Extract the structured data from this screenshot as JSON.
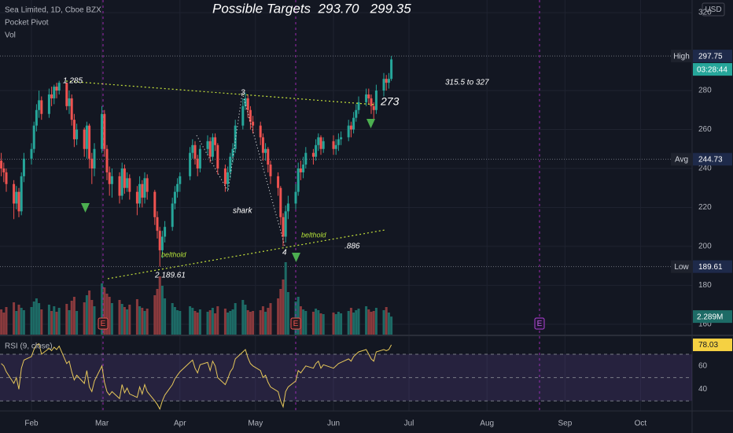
{
  "chart_data": {
    "type": "candlestick",
    "title": "Sea Limited, 1D, Cboe BZX",
    "indicator_labels": [
      "Pocket Pivot",
      "Vol"
    ],
    "currency": "USD",
    "x": [
      20,
      21,
      22,
      25,
      26,
      27,
      28,
      29,
      32,
      33,
      34,
      35,
      36,
      39,
      40,
      41,
      42,
      43,
      46,
      47,
      48,
      49,
      50,
      53,
      54,
      55,
      56,
      57,
      60,
      61,
      62,
      63,
      64,
      67,
      68,
      69,
      70,
      71,
      74,
      75,
      76,
      77,
      78,
      81,
      82,
      83,
      84,
      85,
      88,
      89,
      90,
      91,
      95,
      96,
      97,
      98,
      99,
      102,
      103,
      104,
      105,
      106,
      109,
      110,
      111,
      112,
      113,
      116,
      117,
      118,
      119,
      120,
      123,
      124,
      125,
      126,
      127,
      130,
      131,
      132,
      133,
      134,
      137,
      138,
      139,
      140,
      141,
      144,
      145,
      146,
      147,
      148,
      152,
      153,
      154,
      155,
      158,
      159,
      160,
      161,
      162,
      165,
      166,
      167,
      168,
      169,
      172,
      173,
      174,
      175
    ],
    "open": [
      244,
      240,
      238,
      232,
      222,
      228,
      218,
      236,
      245,
      250,
      262,
      270,
      275,
      268,
      278,
      276,
      282,
      280,
      284,
      272,
      276,
      265,
      255,
      260,
      250,
      262,
      245,
      240,
      250,
      268,
      250,
      238,
      232,
      236,
      226,
      240,
      230,
      235,
      228,
      222,
      232,
      225,
      235,
      228,
      215,
      208,
      198,
      205,
      210,
      222,
      228,
      232,
      236,
      248,
      252,
      245,
      240,
      250,
      254,
      246,
      256,
      252,
      240,
      232,
      238,
      246,
      250,
      262,
      272,
      276,
      270,
      264,
      262,
      256,
      248,
      250,
      242,
      236,
      230,
      215,
      205,
      218,
      222,
      228,
      240,
      238,
      242,
      248,
      246,
      252,
      256,
      250,
      254,
      250,
      252,
      255,
      256,
      262,
      260,
      266,
      270,
      274,
      278,
      276,
      272,
      270,
      280,
      286,
      284,
      286
    ],
    "high": [
      248,
      243,
      240,
      234,
      231,
      230,
      238,
      248,
      253,
      264,
      273,
      280,
      277,
      281,
      282,
      283,
      284,
      285,
      284,
      280,
      278,
      268,
      263,
      261,
      264,
      263,
      248,
      253,
      272,
      270,
      252,
      241,
      240,
      238,
      243,
      242,
      238,
      237,
      231,
      236,
      234,
      238,
      237,
      229,
      218,
      210,
      208,
      213,
      225,
      231,
      235,
      238,
      251,
      255,
      254,
      247,
      252,
      257,
      256,
      258,
      258,
      253,
      242,
      241,
      248,
      253,
      265,
      276,
      279,
      278,
      272,
      267,
      264,
      258,
      253,
      251,
      244,
      238,
      231,
      217,
      221,
      226,
      232,
      243,
      244,
      246,
      251,
      250,
      255,
      258,
      257,
      256,
      257,
      255,
      258,
      259,
      265,
      264,
      269,
      273,
      277,
      281,
      281,
      278,
      274,
      283,
      289,
      288,
      289,
      297.75
    ],
    "low": [
      236,
      233,
      228,
      214,
      219,
      215,
      216,
      233,
      242,
      248,
      259,
      266,
      265,
      266,
      272,
      273,
      276,
      278,
      270,
      268,
      262,
      251,
      252,
      246,
      245,
      240,
      232,
      236,
      248,
      246,
      234,
      226,
      225,
      222,
      224,
      227,
      228,
      224,
      216,
      220,
      220,
      222,
      224,
      211,
      204,
      189.61,
      194,
      202,
      208,
      219,
      225,
      228,
      234,
      245,
      242,
      236,
      238,
      247,
      243,
      244,
      249,
      237,
      228,
      229,
      235,
      243,
      248,
      260,
      270,
      266,
      260,
      258,
      252,
      244,
      244,
      238,
      232,
      226,
      211,
      200,
      202,
      214,
      219,
      226,
      234,
      235,
      240,
      242,
      244,
      249,
      247,
      248,
      247,
      247,
      249,
      252,
      254,
      256,
      258,
      264,
      268,
      272,
      273,
      268,
      265,
      268,
      277,
      280,
      281,
      285
    ],
    "close": [
      240,
      238,
      232,
      222,
      228,
      218,
      236,
      245,
      250,
      262,
      270,
      275,
      268,
      278,
      276,
      282,
      280,
      284,
      272,
      276,
      265,
      255,
      260,
      250,
      262,
      245,
      240,
      250,
      268,
      250,
      238,
      232,
      236,
      226,
      240,
      230,
      235,
      228,
      222,
      232,
      225,
      235,
      228,
      215,
      208,
      198,
      205,
      210,
      222,
      228,
      232,
      236,
      248,
      252,
      245,
      240,
      250,
      254,
      246,
      256,
      252,
      240,
      232,
      238,
      246,
      250,
      262,
      272,
      276,
      270,
      264,
      262,
      256,
      248,
      250,
      242,
      236,
      230,
      215,
      205,
      218,
      222,
      228,
      240,
      238,
      242,
      248,
      246,
      252,
      256,
      250,
      254,
      250,
      252,
      255,
      256,
      262,
      260,
      266,
      270,
      274,
      278,
      276,
      272,
      270,
      280,
      286,
      284,
      286,
      296
    ],
    "xlim": [
      19.5,
      294.5
    ],
    "xticks": [
      {
        "value": 32,
        "label": "Feb"
      },
      {
        "value": 60,
        "label": "Mar"
      },
      {
        "value": 91,
        "label": "Apr"
      },
      {
        "value": 121,
        "label": "May"
      },
      {
        "value": 152,
        "label": "Jun"
      },
      {
        "value": 182,
        "label": "Jul"
      },
      {
        "value": 213,
        "label": "Aug"
      },
      {
        "value": 244,
        "label": "Sep"
      },
      {
        "value": 274,
        "label": "Oct"
      }
    ],
    "ylim": [
      154.7,
      326.5
    ],
    "yticks": [
      160,
      180,
      200,
      220,
      240,
      260,
      280,
      320
    ],
    "colors": {
      "up": "#26a69a",
      "down": "#ef5350",
      "volume_up": "#1d6b66",
      "volume_down": "#8a3a3d",
      "rsi": "#e6c75a"
    },
    "levels": [
      {
        "name": "High",
        "value": 297.75
      },
      {
        "name": "Avg",
        "value": 244.73
      },
      {
        "name": "Low",
        "value": 189.61
      }
    ],
    "countdown": "03:28:44",
    "volume": {
      "values": [
        3.2,
        2.8,
        3.5,
        4.1,
        3.0,
        3.8,
        3.4,
        3.1,
        3.5,
        4.2,
        4.6,
        4.0,
        3.2,
        3.8,
        3.0,
        3.6,
        2.9,
        3.4,
        3.9,
        3.1,
        4.3,
        4.8,
        3.0,
        4.1,
        5.0,
        5.6,
        4.4,
        3.6,
        6.5,
        6.0,
        5.2,
        4.8,
        4.0,
        4.4,
        3.9,
        3.5,
        3.2,
        3.8,
        4.5,
        3.6,
        3.4,
        3.0,
        3.3,
        5.0,
        5.8,
        7.4,
        6.2,
        4.6,
        4.0,
        3.5,
        3.1,
        3.0,
        3.6,
        3.4,
        3.0,
        2.8,
        3.2,
        2.9,
        3.1,
        3.4,
        2.7,
        3.6,
        3.3,
        2.8,
        3.0,
        3.2,
        4.0,
        4.4,
        3.8,
        3.1,
        2.9,
        3.0,
        3.1,
        3.6,
        2.9,
        3.4,
        4.0,
        4.6,
        5.8,
        7.0,
        9.2,
        5.4,
        4.2,
        4.8,
        3.6,
        3.2,
        3.0,
        2.9,
        3.3,
        3.1,
        2.7,
        2.6,
        2.8,
        2.6,
        2.9,
        2.7,
        3.0,
        3.4,
        2.8,
        3.1,
        3.3,
        3.6,
        3.2,
        2.9,
        3.0,
        3.4,
        3.1,
        3.5,
        2.8,
        2.289
      ],
      "last_label": "2.289M",
      "ylim": [
        0,
        11
      ]
    },
    "rsi": {
      "name": "RSI (9, close)",
      "values": [
        62,
        60,
        55,
        45,
        50,
        40,
        58,
        65,
        68,
        74,
        78,
        79,
        70,
        75,
        73,
        76,
        74,
        77,
        62,
        64,
        55,
        48,
        52,
        45,
        56,
        42,
        38,
        47,
        60,
        46,
        38,
        35,
        38,
        32,
        44,
        37,
        41,
        36,
        33,
        42,
        36,
        44,
        38,
        30,
        27,
        23,
        30,
        35,
        44,
        49,
        52,
        55,
        63,
        65,
        58,
        54,
        61,
        63,
        56,
        64,
        60,
        50,
        44,
        49,
        55,
        58,
        66,
        72,
        74,
        67,
        62,
        60,
        56,
        50,
        52,
        46,
        42,
        38,
        30,
        25,
        38,
        42,
        47,
        56,
        54,
        57,
        60,
        58,
        62,
        64,
        58,
        61,
        58,
        60,
        62,
        63,
        66,
        64,
        68,
        70,
        72,
        74,
        70,
        66,
        64,
        72,
        74,
        73,
        74,
        78.03
      ],
      "ylim": [
        21.4,
        84.8
      ],
      "yticks": [
        40,
        60
      ],
      "bands": [
        30,
        50,
        70
      ]
    },
    "annotations": [
      "Possible Targets  293.70   299.35",
      "1 285",
      "3",
      "shark",
      "belthold",
      "2 189.61",
      "4",
      "belthold",
      ".886",
      "273",
      "315.5 to 327",
      "E",
      "E",
      "E"
    ]
  }
}
